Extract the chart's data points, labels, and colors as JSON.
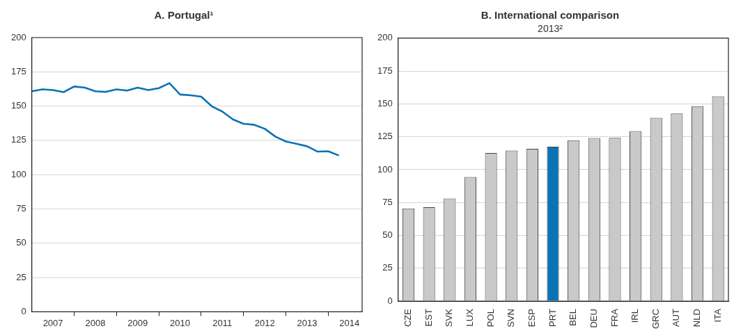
{
  "chart_data": [
    {
      "type": "line",
      "title": "A. Portugal¹",
      "x": [
        2007,
        2007.25,
        2007.5,
        2007.75,
        2008,
        2008.25,
        2008.5,
        2008.75,
        2009,
        2009.25,
        2009.5,
        2009.75,
        2010,
        2010.25,
        2010.5,
        2010.75,
        2011,
        2011.25,
        2011.5,
        2011.75,
        2012,
        2012.25,
        2012.5,
        2012.75,
        2013,
        2013.25,
        2013.5,
        2013.75,
        2014,
        2014.25
      ],
      "series": [
        {
          "color": "#0b72b5",
          "values": [
            160.8,
            162.2,
            161.7,
            160.2,
            164.3,
            163.5,
            160.8,
            160.4,
            162.2,
            161.3,
            163.5,
            161.7,
            163.1,
            166.7,
            158.5,
            157.9,
            156.9,
            149.9,
            146,
            140.3,
            137.1,
            136.4,
            133.5,
            127.8,
            124.2,
            122.5,
            120.7,
            116.8,
            117.1,
            114
          ]
        }
      ],
      "xlim": [
        2007,
        2014.8
      ],
      "xticks": [
        {
          "value": 2007.5,
          "label": "2007"
        },
        {
          "value": 2008,
          "label": null
        },
        {
          "value": 2008.5,
          "label": "2008"
        },
        {
          "value": 2009,
          "label": null
        },
        {
          "value": 2009.5,
          "label": "2009"
        },
        {
          "value": 2010,
          "label": null
        },
        {
          "value": 2010.5,
          "label": "2010"
        },
        {
          "value": 2011,
          "label": null
        },
        {
          "value": 2011.5,
          "label": "2011"
        },
        {
          "value": 2012,
          "label": null
        },
        {
          "value": 2012.5,
          "label": "2012"
        },
        {
          "value": 2013,
          "label": null
        },
        {
          "value": 2013.5,
          "label": "2013"
        },
        {
          "value": 2014,
          "label": null
        },
        {
          "value": 2014.5,
          "label": "2014"
        }
      ],
      "ylim": [
        0,
        200
      ],
      "yticks": [
        0,
        25,
        50,
        75,
        100,
        125,
        150,
        175,
        200
      ],
      "grid": "y"
    },
    {
      "type": "bar",
      "title": "B. International comparison",
      "subtitle": "2013²",
      "categories": [
        "CZE",
        "EST",
        "SVK",
        "LUX",
        "POL",
        "SVN",
        "ESP",
        "PRT",
        "BEL",
        "DEU",
        "FRA",
        "IRL",
        "GRC",
        "AUT",
        "NLD",
        "ITA"
      ],
      "values": [
        70.5,
        71.4,
        78,
        94.4,
        112.6,
        114.5,
        115.8,
        117.4,
        122.3,
        124,
        124.2,
        129.3,
        139.4,
        142.7,
        148.2,
        155.8
      ],
      "colors": [
        "#c8c9cb",
        "#c8c9cb",
        "#c8c9cb",
        "#c8c9cb",
        "#c8c9cb",
        "#c8c9cb",
        "#c8c9cb",
        "#0b72b5",
        "#c8c9cb",
        "#c8c9cb",
        "#c8c9cb",
        "#c8c9cb",
        "#c8c9cb",
        "#c8c9cb",
        "#c8c9cb",
        "#c8c9cb"
      ],
      "ylim": [
        0,
        200
      ],
      "yticks": [
        0,
        25,
        50,
        75,
        100,
        125,
        150,
        175,
        200
      ],
      "grid": "y"
    }
  ]
}
